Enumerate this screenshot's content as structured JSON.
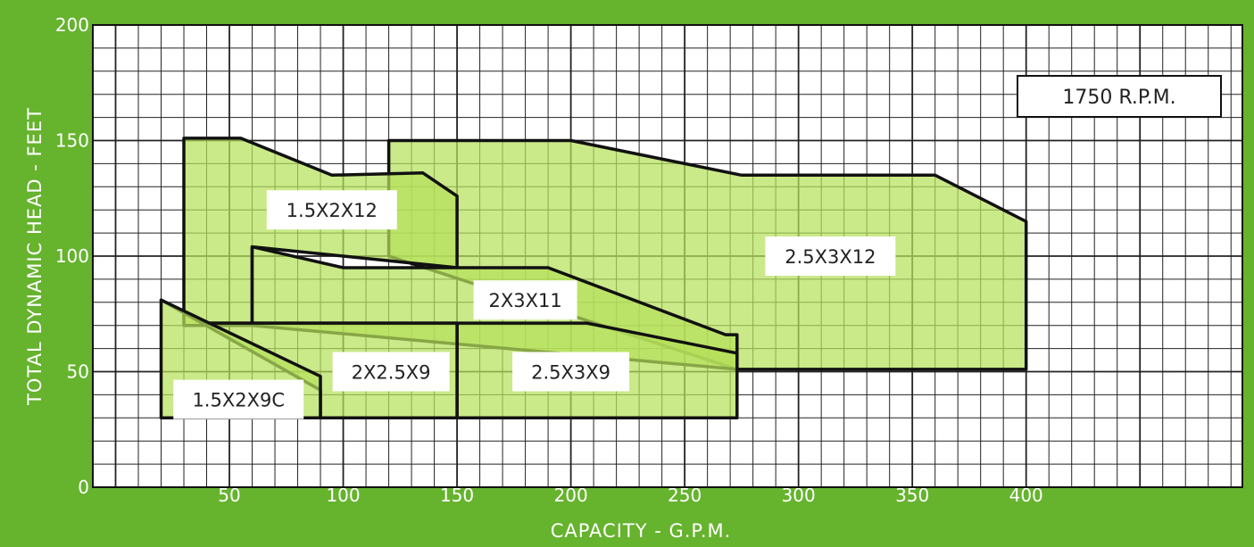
{
  "colors": {
    "background": "#66b32e",
    "plot_background": "#ffffff",
    "region_fill": "#b6e05a",
    "grid": "#222222",
    "outline": "#111111",
    "tick_text": "#ffffff"
  },
  "chart_data": {
    "type": "area",
    "title": "",
    "annotation": "1750 R.P.M.",
    "xlabel": "CAPACITY - G.P.M.",
    "ylabel": "TOTAL DYNAMIC HEAD - FEET",
    "xlim": [
      -10,
      495
    ],
    "ylim": [
      0,
      200
    ],
    "x_ticks": [
      50,
      100,
      150,
      200,
      250,
      300,
      350,
      400
    ],
    "y_ticks": [
      0,
      50,
      100,
      150,
      200
    ],
    "grid": true,
    "grid_minor_x_step": 10,
    "grid_minor_y_step": 10,
    "grid_major_x_step": 50,
    "grid_major_y_step": 50,
    "regions": [
      {
        "name": "2.5X3X12",
        "polygon": [
          [
            120,
            150
          ],
          [
            200,
            150
          ],
          [
            275,
            135
          ],
          [
            360,
            135
          ],
          [
            400,
            115
          ],
          [
            400,
            51
          ],
          [
            273,
            51
          ],
          [
            120,
            100
          ]
        ],
        "label_at": [
          314,
          100
        ]
      },
      {
        "name": "1.5X2X12",
        "polygon": [
          [
            30,
            151
          ],
          [
            55,
            151
          ],
          [
            95,
            135
          ],
          [
            135,
            136
          ],
          [
            150,
            126
          ],
          [
            150,
            95
          ],
          [
            60,
            104
          ],
          [
            60,
            70
          ],
          [
            30,
            70
          ]
        ],
        "label_at": [
          95,
          120
        ]
      },
      {
        "name": "2X3X11",
        "polygon": [
          [
            60,
            104
          ],
          [
            100,
            95
          ],
          [
            190,
            95
          ],
          [
            268,
            66
          ],
          [
            273,
            66
          ],
          [
            273,
            51
          ],
          [
            60,
            70
          ]
        ],
        "label_at": [
          180,
          81
        ]
      },
      {
        "name": "2.5X3X9",
        "polygon": [
          [
            40,
            71
          ],
          [
            207,
            71
          ],
          [
            273,
            58
          ],
          [
            273,
            30
          ],
          [
            150,
            30
          ],
          [
            150,
            71
          ]
        ],
        "label_at": [
          200,
          50
        ]
      },
      {
        "name": "2X2.5X9",
        "polygon": [
          [
            40,
            71
          ],
          [
            150,
            71
          ],
          [
            150,
            30
          ],
          [
            90,
            30
          ],
          [
            90,
            42
          ],
          [
            20,
            81
          ]
        ],
        "label_at": [
          121,
          50
        ]
      },
      {
        "name": "1.5X2X9C",
        "polygon": [
          [
            20,
            81
          ],
          [
            90,
            48
          ],
          [
            90,
            30
          ],
          [
            20,
            30
          ]
        ],
        "label_at": [
          54,
          38
        ]
      }
    ]
  }
}
